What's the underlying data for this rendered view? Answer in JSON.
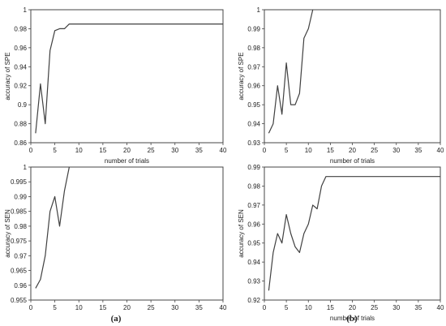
{
  "panel_labels": {
    "a": "(a)",
    "b": "(b)"
  },
  "chart_data": [
    {
      "id": "a_top",
      "type": "line",
      "xlabel": "number of trials",
      "ylabel": "accuracy of SPE",
      "xlim": [
        0,
        40
      ],
      "ylim": [
        0.86,
        1
      ],
      "xticks": [
        0,
        5,
        10,
        15,
        20,
        25,
        30,
        35,
        40
      ],
      "yticks": [
        0.86,
        0.88,
        0.9,
        0.92,
        0.94,
        0.96,
        0.98,
        1
      ],
      "ytick_labels": [
        "0.86",
        "0.88",
        "0.9",
        "0.92",
        "0.94",
        "0.96",
        "0.98",
        "1"
      ],
      "line_color": "#404040",
      "series": [
        {
          "x": [
            1,
            2,
            3,
            4,
            5,
            6,
            7,
            8,
            9,
            40
          ],
          "y": [
            0.87,
            0.922,
            0.88,
            0.957,
            0.978,
            0.98,
            0.98,
            0.985,
            0.985,
            0.985
          ]
        }
      ]
    },
    {
      "id": "b_top",
      "type": "line",
      "xlabel": "number of trials",
      "ylabel": "accuracy of SPE",
      "xlim": [
        0,
        40
      ],
      "ylim": [
        0.93,
        1
      ],
      "xticks": [
        0,
        5,
        10,
        15,
        20,
        25,
        30,
        35,
        40
      ],
      "yticks": [
        0.93,
        0.94,
        0.95,
        0.96,
        0.97,
        0.98,
        0.99,
        1
      ],
      "ytick_labels": [
        "0.93",
        "0.94",
        "0.95",
        "0.96",
        "0.97",
        "0.98",
        "0.99",
        "1"
      ],
      "line_color": "#404040",
      "series": [
        {
          "x": [
            1,
            2,
            3,
            4,
            5,
            6,
            7,
            8,
            9,
            10,
            11
          ],
          "y": [
            0.935,
            0.94,
            0.96,
            0.945,
            0.972,
            0.95,
            0.95,
            0.956,
            0.985,
            0.99,
            1.0
          ]
        }
      ]
    },
    {
      "id": "a_bottom",
      "type": "line",
      "xlabel": "",
      "ylabel": "accuracy of SEN",
      "xlim": [
        0,
        40
      ],
      "ylim": [
        0.955,
        1
      ],
      "xticks": [
        0,
        5,
        10,
        15,
        20,
        25,
        30,
        35,
        40
      ],
      "yticks": [
        0.955,
        0.96,
        0.965,
        0.97,
        0.975,
        0.98,
        0.985,
        0.99,
        0.995,
        1
      ],
      "ytick_labels": [
        "0.955",
        "0.96",
        "0.965",
        "0.97",
        "0.975",
        "0.98",
        "0.985",
        "0.99",
        "0.995",
        "1"
      ],
      "line_color": "#404040",
      "series": [
        {
          "x": [
            1,
            2,
            3,
            4,
            5,
            6,
            7,
            8
          ],
          "y": [
            0.959,
            0.962,
            0.97,
            0.985,
            0.99,
            0.98,
            0.992,
            1.0
          ]
        }
      ]
    },
    {
      "id": "b_bottom",
      "type": "line",
      "xlabel": "number of trials",
      "ylabel": "accuracy of SEN",
      "xlim": [
        0,
        40
      ],
      "ylim": [
        0.92,
        0.99
      ],
      "xticks": [
        0,
        5,
        10,
        15,
        20,
        25,
        30,
        35,
        40
      ],
      "yticks": [
        0.92,
        0.93,
        0.94,
        0.95,
        0.96,
        0.97,
        0.98,
        0.99
      ],
      "ytick_labels": [
        "0.92",
        "0.93",
        "0.94",
        "0.95",
        "0.96",
        "0.97",
        "0.98",
        "0.99"
      ],
      "line_color": "#404040",
      "series": [
        {
          "x": [
            1,
            2,
            3,
            4,
            5,
            6,
            7,
            8,
            9,
            10,
            11,
            12,
            13,
            14,
            40
          ],
          "y": [
            0.925,
            0.945,
            0.955,
            0.95,
            0.965,
            0.955,
            0.948,
            0.945,
            0.955,
            0.96,
            0.97,
            0.968,
            0.98,
            0.985,
            0.985
          ]
        }
      ]
    }
  ]
}
